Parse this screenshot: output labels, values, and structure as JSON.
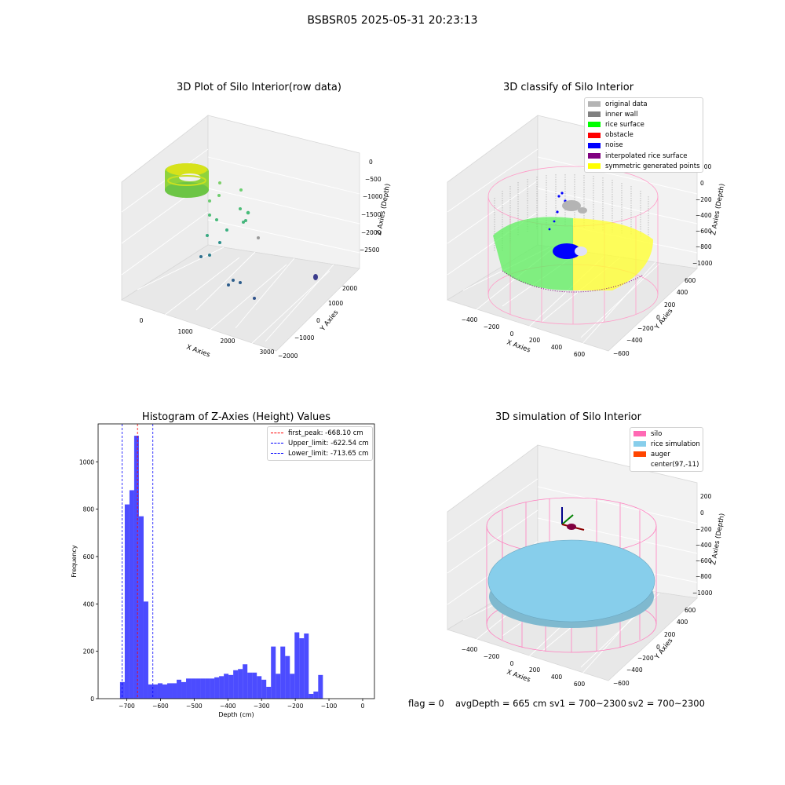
{
  "suptitle": "BSBSR05 2025-05-31 20:23:13",
  "panel_raw": {
    "title": "3D Plot of Silo Interior(row data)",
    "xlabel": "X Axies",
    "ylabel": "Y Axies",
    "zlabel": "Z Axies (Depth)",
    "x_ticks": [
      "0",
      "1000",
      "2000",
      "3000"
    ],
    "y_ticks": [
      "2000",
      "1000",
      "0",
      "−1000",
      "−2000"
    ],
    "z_ticks": [
      "0",
      "−500",
      "−1000",
      "−1500",
      "−2000",
      "−2500"
    ]
  },
  "panel_classify": {
    "title": "3D classify of Silo Interior",
    "xlabel": "X Axies",
    "ylabel": "Y Axies",
    "zlabel": "Z Axies (Depth)",
    "x_ticks": [
      "−400",
      "−200",
      "0",
      "200",
      "400",
      "600"
    ],
    "y_ticks": [
      "600",
      "400",
      "200",
      "0",
      "−200",
      "−400",
      "−600"
    ],
    "z_ticks": [
      "200",
      "0",
      "−200",
      "−400",
      "−600",
      "−800",
      "−1000"
    ],
    "legend": [
      {
        "label": "original data",
        "color": "#b4b4b4"
      },
      {
        "label": "inner wall",
        "color": "#808080"
      },
      {
        "label": "rice surface",
        "color": "#00ff00"
      },
      {
        "label": "obstacle",
        "color": "#ff0000"
      },
      {
        "label": "noise",
        "color": "#0000ff"
      },
      {
        "label": "interpolated rice surface",
        "color": "#800080"
      },
      {
        "label": "symmetric generated points",
        "color": "#ffff00"
      }
    ]
  },
  "panel_sim": {
    "title": "3D simulation of Silo Interior",
    "xlabel": "X Axies",
    "ylabel": "Y Axies",
    "zlabel": "Z Axies (Depth)",
    "x_ticks": [
      "−400",
      "−200",
      "0",
      "200",
      "400",
      "600"
    ],
    "y_ticks": [
      "600",
      "400",
      "200",
      "0",
      "−200",
      "−400",
      "−600"
    ],
    "z_ticks": [
      "200",
      "0",
      "−200",
      "−400",
      "−600",
      "−800",
      "−1000"
    ],
    "legend": [
      {
        "label": "silo",
        "color": "#ff69b4"
      },
      {
        "label": "rice simulation",
        "color": "#87ceeb"
      },
      {
        "label": "auger",
        "color": "#ff4500"
      },
      {
        "label": "center(97,-11)",
        "color": "#ffffff"
      }
    ]
  },
  "footer": {
    "flag": "flag = 0",
    "avg": "avgDepth = 665 cm",
    "sv1": "sv1 = 700~2300",
    "sv2": "sv2 = 700~2300"
  },
  "chart_data": {
    "type": "bar",
    "title": "Histogram of Z-Axies (Height) Values",
    "xlabel": "Depth (cm)",
    "ylabel": "Frequency",
    "xlim": [
      -785,
      35
    ],
    "ylim": [
      0,
      1160
    ],
    "x_ticks": [
      -700,
      -600,
      -500,
      -400,
      -300,
      -200,
      -100,
      0
    ],
    "x_tick_labels": [
      "−700",
      "−600",
      "−500",
      "−400",
      "−300",
      "−200",
      "−100",
      "0"
    ],
    "y_ticks": [
      0,
      200,
      400,
      600,
      800,
      1000
    ],
    "bin_start": -720,
    "bin_width": 14,
    "color": "#0000ff",
    "values": [
      70,
      820,
      880,
      1110,
      770,
      410,
      60,
      60,
      65,
      60,
      65,
      65,
      80,
      70,
      85,
      85,
      85,
      85,
      85,
      85,
      90,
      95,
      105,
      100,
      120,
      125,
      145,
      110,
      110,
      95,
      80,
      50,
      220,
      105,
      220,
      180,
      105,
      280,
      255,
      275,
      20,
      30,
      100
    ],
    "legend": [
      {
        "label": "first_peak: -668.10 cm",
        "value": -668.1,
        "color": "#ff0000"
      },
      {
        "label": "Upper_limit: -622.54 cm",
        "value": -622.54,
        "color": "#0000ff"
      },
      {
        "label": "Lower_limit: -713.65 cm",
        "value": -713.65,
        "color": "#0000ff"
      }
    ]
  }
}
